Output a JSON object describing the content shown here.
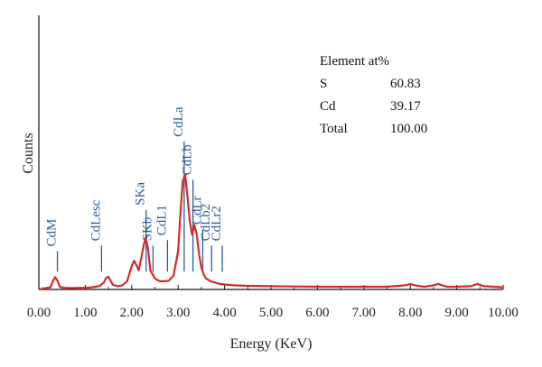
{
  "chart_data": {
    "type": "line",
    "xlabel": "Energy (KeV)",
    "ylabel": "Counts",
    "xlim": [
      0,
      10
    ],
    "x_ticks": [
      "0.00",
      "1.00",
      "2.00",
      "3.00",
      "4.00",
      "5.00",
      "6.00",
      "7.00",
      "8.00",
      "9.00",
      "10.00"
    ],
    "grid": false,
    "colors": {
      "spectrum": "#d42a2a",
      "labels": "#2a5d9f",
      "axes": "#111111"
    },
    "spectrum": {
      "x": [
        0.05,
        0.15,
        0.25,
        0.3,
        0.35,
        0.4,
        0.45,
        0.55,
        0.7,
        0.9,
        1.1,
        1.3,
        1.4,
        1.45,
        1.5,
        1.55,
        1.6,
        1.7,
        1.8,
        1.9,
        2.0,
        2.05,
        2.1,
        2.15,
        2.2,
        2.25,
        2.3,
        2.35,
        2.4,
        2.5,
        2.6,
        2.7,
        2.8,
        2.9,
        3.0,
        3.05,
        3.1,
        3.15,
        3.2,
        3.25,
        3.3,
        3.35,
        3.4,
        3.45,
        3.5,
        3.55,
        3.6,
        3.7,
        3.8,
        3.9,
        4.0,
        4.2,
        4.5,
        5.0,
        5.5,
        6.0,
        6.5,
        7.0,
        7.5,
        7.9,
        8.0,
        8.1,
        8.3,
        8.5,
        8.6,
        8.7,
        8.8,
        9.0,
        9.3,
        9.45,
        9.5,
        9.6,
        9.8,
        10.0
      ],
      "y": [
        0.3,
        0.5,
        0.8,
        3.0,
        4.5,
        3.2,
        1.0,
        0.6,
        0.5,
        0.6,
        0.7,
        1.2,
        2.5,
        4.2,
        4.6,
        3.0,
        1.6,
        1.2,
        1.5,
        3.0,
        8.5,
        10.5,
        9.0,
        7.0,
        11.0,
        15.5,
        19.0,
        15.0,
        7.0,
        4.0,
        3.0,
        3.0,
        3.2,
        5.0,
        14.0,
        28.0,
        39.5,
        42.0,
        34.0,
        25.0,
        20.0,
        23.5,
        20.0,
        13.0,
        8.0,
        5.5,
        4.0,
        3.0,
        2.5,
        2.0,
        1.8,
        1.5,
        1.3,
        1.2,
        1.1,
        1.0,
        1.0,
        1.0,
        1.0,
        1.5,
        2.0,
        1.5,
        1.0,
        1.5,
        2.0,
        1.4,
        1.0,
        1.0,
        1.2,
        2.0,
        1.6,
        1.2,
        1.0,
        0.8
      ]
    },
    "peaks": [
      {
        "label": "CdM",
        "x": 0.4,
        "marker_top": 14
      },
      {
        "label": "CdLesc",
        "x": 1.35,
        "marker_top": 16
      },
      {
        "label": "SKa",
        "x": 2.31,
        "marker_top": 29
      },
      {
        "label": "SKb",
        "x": 2.46,
        "marker_top": 16
      },
      {
        "label": "CdL1",
        "x": 2.77,
        "marker_top": 18
      },
      {
        "label": "CdLa",
        "x": 3.13,
        "marker_top": 54
      },
      {
        "label": "CdLb",
        "x": 3.32,
        "marker_top": 40
      },
      {
        "label": "CdLr",
        "x": 3.53,
        "marker_top": 22
      },
      {
        "label": "CdLb2",
        "x": 3.72,
        "marker_top": 16
      },
      {
        "label": "CdLr2",
        "x": 3.95,
        "marker_top": 16
      }
    ],
    "composition_table": {
      "header": "Element at%",
      "rows": [
        {
          "element": "S",
          "value": "60.83"
        },
        {
          "element": "Cd",
          "value": "39.17"
        },
        {
          "element": "Total",
          "value": "100.00"
        }
      ]
    }
  }
}
